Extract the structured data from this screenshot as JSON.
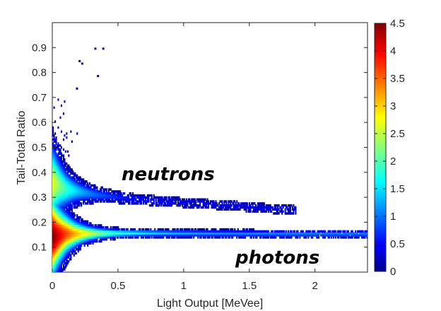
{
  "chart_data": {
    "type": "heatmap",
    "title": "",
    "xlabel": "Light Output [MeVee]",
    "ylabel": "Tail-Total Ratio",
    "xlim": [
      0,
      2.4
    ],
    "ylim": [
      0,
      1.0
    ],
    "xticks": [
      0,
      0.5,
      1,
      1.5,
      2
    ],
    "xtick_labels": [
      "0",
      "0.5",
      "1",
      "1.5",
      "2"
    ],
    "yticks": [
      0.1,
      0.2,
      0.3,
      0.4,
      0.5,
      0.6,
      0.7,
      0.8,
      0.9
    ],
    "ytick_labels": [
      "0.1",
      "0.2",
      "0.3",
      "0.4",
      "0.5",
      "0.6",
      "0.7",
      "0.8",
      "0.9"
    ],
    "colorbar": {
      "range": [
        0,
        4.5
      ],
      "ticks": [
        0,
        0.5,
        1,
        1.5,
        2,
        2.5,
        3,
        3.5,
        4,
        4.5
      ],
      "tick_labels": [
        "0",
        "0.5",
        "1",
        "1.5",
        "2",
        "2.5",
        "3",
        "3.5",
        "4",
        "4.5"
      ],
      "colormap": "jet"
    },
    "annotations": [
      {
        "text": "neutrons",
        "x": 0.52,
        "y": 0.38
      },
      {
        "text": "photons",
        "x": 1.38,
        "y": 0.05
      }
    ],
    "bands": [
      {
        "name": "photons",
        "ridge": [
          [
            0.02,
            0.14
          ],
          [
            0.1,
            0.15
          ],
          [
            0.3,
            0.152
          ],
          [
            0.6,
            0.153
          ],
          [
            1.0,
            0.152
          ],
          [
            1.5,
            0.151
          ],
          [
            2.0,
            0.15
          ],
          [
            2.4,
            0.15
          ]
        ],
        "peak_value": 4.5
      },
      {
        "name": "neutrons",
        "ridge": [
          [
            0.02,
            0.35
          ],
          [
            0.1,
            0.33
          ],
          [
            0.3,
            0.31
          ],
          [
            0.6,
            0.29
          ],
          [
            1.0,
            0.275
          ],
          [
            1.3,
            0.265
          ],
          [
            1.7,
            0.25
          ],
          [
            1.85,
            0.245
          ]
        ],
        "peak_value": 2.7
      }
    ]
  }
}
